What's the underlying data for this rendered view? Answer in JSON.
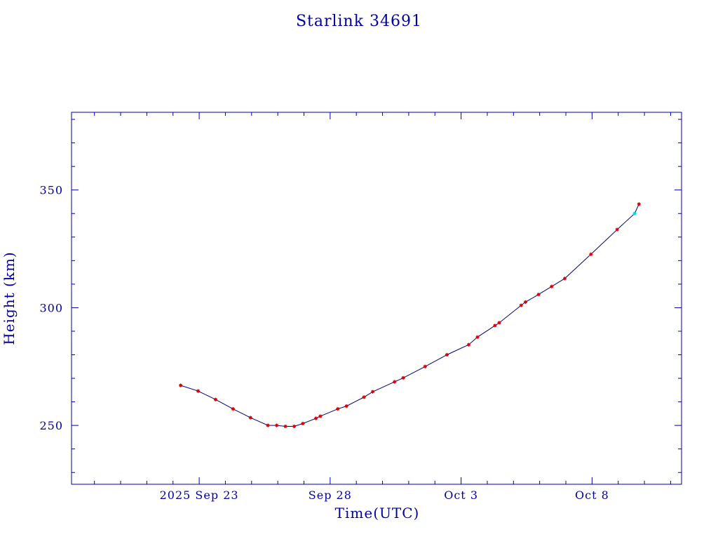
{
  "chart_data": {
    "type": "line",
    "title": "Starlink 34691",
    "xlabel": "Time(UTC)",
    "ylabel": "Height (km)",
    "x_tick_labels": [
      {
        "date": "2025-09-23",
        "label": "2025 Sep 23"
      },
      {
        "date": "2025-09-28",
        "label": "Sep 28"
      },
      {
        "date": "2025-10-03",
        "label": "Oct  3"
      },
      {
        "date": "2025-10-08",
        "label": "Oct  8"
      }
    ],
    "xlim": [
      "2025-09-18T03:00",
      "2025-10-11T10:00"
    ],
    "y_ticks": [
      250,
      300,
      350
    ],
    "ylim": [
      225,
      383
    ],
    "grid": false,
    "colors": {
      "frame": "#0000a0",
      "line": "#000080",
      "marker": "#dd0000",
      "current_marker": "#00d8d8",
      "text": "#0000a0"
    },
    "series": [
      {
        "points": [
          [
            "2025-09-22T07:00",
            267.0
          ],
          [
            "2025-09-22T23:00",
            264.6
          ],
          [
            "2025-09-23T15:00",
            261.0
          ],
          [
            "2025-09-24T07:00",
            257.0
          ],
          [
            "2025-09-24T23:00",
            253.3
          ],
          [
            "2025-09-25T15:00",
            250.0
          ],
          [
            "2025-09-25T23:00",
            250.0
          ],
          [
            "2025-09-26T07:00",
            249.6
          ],
          [
            "2025-09-26T15:00",
            249.6
          ],
          [
            "2025-09-26T23:00",
            250.8
          ],
          [
            "2025-09-27T11:00",
            253.0
          ],
          [
            "2025-09-27T15:00",
            253.9
          ],
          [
            "2025-09-28T07:00",
            257.0
          ],
          [
            "2025-09-28T15:00",
            258.2
          ],
          [
            "2025-09-29T07:00",
            262.0
          ],
          [
            "2025-09-29T15:00",
            264.3
          ],
          [
            "2025-09-30T11:00",
            268.5
          ],
          [
            "2025-09-30T19:00",
            270.2
          ],
          [
            "2025-10-01T15:00",
            275.0
          ],
          [
            "2025-10-02T11:00",
            280.0
          ],
          [
            "2025-10-03T07:00",
            284.3
          ],
          [
            "2025-10-03T15:00",
            287.5
          ],
          [
            "2025-10-04T07:00",
            292.4
          ],
          [
            "2025-10-04T11:00",
            293.6
          ],
          [
            "2025-10-05T07:00",
            301.0
          ],
          [
            "2025-10-05T11:00",
            302.4
          ],
          [
            "2025-10-05T23:00",
            305.6
          ],
          [
            "2025-10-06T11:00",
            309.0
          ],
          [
            "2025-10-06T23:00",
            312.4
          ],
          [
            "2025-10-07T23:00",
            322.7
          ],
          [
            "2025-10-08T23:00",
            333.2
          ],
          [
            "2025-10-09T15:00",
            340.0
          ],
          [
            "2025-10-09T19:00",
            344.0
          ]
        ],
        "current_point_index": 31
      }
    ]
  }
}
